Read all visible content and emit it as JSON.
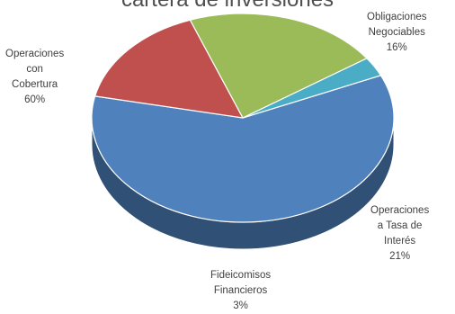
{
  "chart_data": {
    "type": "pie",
    "title": "cartera de inversiones",
    "slices": [
      {
        "name": "Operaciones con Cobertura",
        "label_lines": [
          "Operaciones",
          "con",
          "Cobertura"
        ],
        "value": 60,
        "value_label": "60%",
        "color": "#4f81bd"
      },
      {
        "name": "Obligaciones Negociables",
        "label_lines": [
          "Obligaciones",
          "Negociables"
        ],
        "value": 16,
        "value_label": "16%",
        "color": "#c0504d"
      },
      {
        "name": "Operaciones a Tasa de Interés",
        "label_lines": [
          "Operaciones",
          "a Tasa de",
          "Interés"
        ],
        "value": 21,
        "value_label": "21%",
        "color": "#9bbb59"
      },
      {
        "name": "Fideicomisos Financieros",
        "label_lines": [
          "Fideicomisos",
          "Financieros"
        ],
        "value": 3,
        "value_label": "3%",
        "color": "#4bacc6"
      }
    ]
  }
}
